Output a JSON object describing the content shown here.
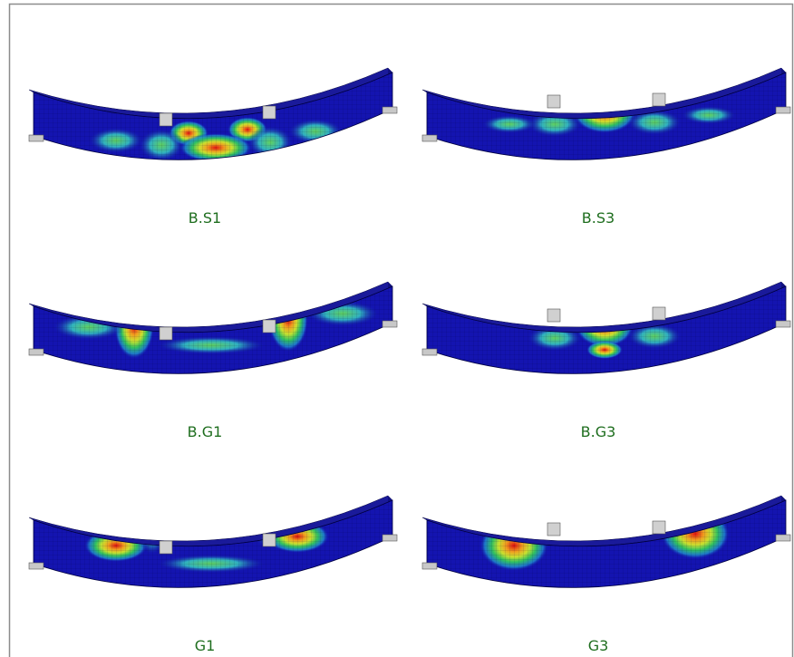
{
  "panels": [
    {
      "label": "B.S1"
    },
    {
      "label": "B.S3"
    },
    {
      "label": "B.G1"
    },
    {
      "label": "B.G3"
    },
    {
      "label": "G1"
    },
    {
      "label": "G3"
    }
  ]
}
